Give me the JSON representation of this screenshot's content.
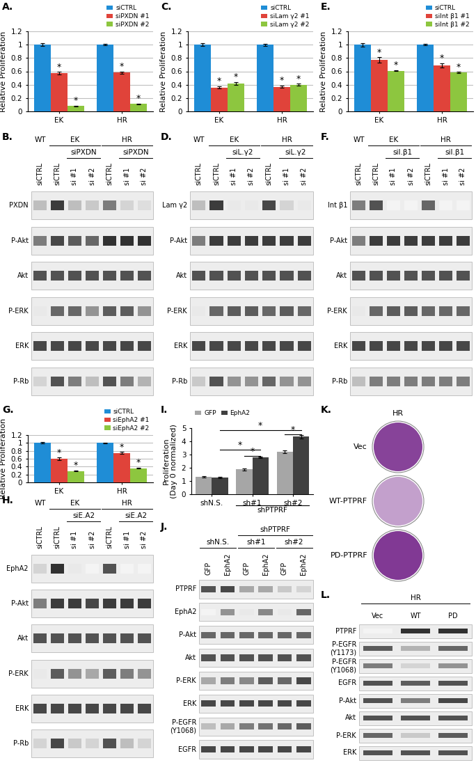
{
  "chart_data": [
    {
      "panel": "A.",
      "type": "bar",
      "y_label": "Relative Proliferation",
      "categories": [
        "EK",
        "HR"
      ],
      "series": [
        {
          "name": "siCTRL",
          "color": "#1F8DD6",
          "values": [
            1,
            1
          ],
          "errors": [
            0.02,
            0.01
          ]
        },
        {
          "name": "siPXDN #1",
          "color": "#E0433A",
          "values": [
            0.57,
            0.58
          ],
          "errors": [
            0.02,
            0.015
          ],
          "significance": [
            "*",
            "*"
          ]
        },
        {
          "name": "siPXDN #2",
          "color": "#8DC63F",
          "values": [
            0.08,
            0.11
          ],
          "errors": [
            0.005,
            0.01
          ],
          "significance": [
            "*",
            "*"
          ]
        }
      ],
      "ylim": [
        0,
        1.2
      ],
      "yticks": [
        0,
        0.2,
        0.4,
        0.6,
        0.8,
        1,
        1.2
      ],
      "grid": true,
      "legend": "upper right"
    },
    {
      "panel": "C.",
      "type": "bar",
      "y_label": "Relative Proliferation",
      "categories": [
        "EK",
        "HR"
      ],
      "series": [
        {
          "name": "siCTRL",
          "color": "#1F8DD6",
          "values": [
            1,
            1
          ],
          "errors": [
            0.02,
            0.015
          ]
        },
        {
          "name": "siLam γ2 #1",
          "color": "#E0433A",
          "values": [
            0.36,
            0.37
          ],
          "errors": [
            0.02,
            0.015
          ],
          "significance": [
            "*",
            "*"
          ]
        },
        {
          "name": "siLam γ2 #2",
          "color": "#8DC63F",
          "values": [
            0.42,
            0.4
          ],
          "errors": [
            0.02,
            0.015
          ],
          "significance": [
            "*",
            "*"
          ]
        }
      ],
      "ylim": [
        0,
        1.2
      ],
      "yticks": [
        0,
        0.2,
        0.4,
        0.6,
        0.8,
        1,
        1.2
      ],
      "grid": true,
      "legend": "upper right"
    },
    {
      "panel": "E.",
      "type": "bar",
      "y_label": "Relative Proliferation",
      "categories": [
        "EK",
        "HR"
      ],
      "series": [
        {
          "name": "siCTRL",
          "color": "#1F8DD6",
          "values": [
            1,
            1
          ],
          "errors": [
            0.025,
            0.01
          ]
        },
        {
          "name": "siInt β1 #1",
          "color": "#E0433A",
          "values": [
            0.77,
            0.69
          ],
          "errors": [
            0.04,
            0.03
          ],
          "significance": [
            "*",
            "*"
          ]
        },
        {
          "name": "siInt β1 #2",
          "color": "#8DC63F",
          "values": [
            0.61,
            0.58
          ],
          "errors": [
            0.005,
            0.01
          ],
          "significance": [
            "*",
            "*"
          ]
        }
      ],
      "ylim": [
        0,
        1.2
      ],
      "yticks": [
        0,
        0.2,
        0.4,
        0.6,
        0.8,
        1,
        1.2
      ],
      "grid": true,
      "legend": "upper right"
    },
    {
      "panel": "G.",
      "type": "bar",
      "y_label": "Relative Proliferation",
      "categories": [
        "EK",
        "HR"
      ],
      "series": [
        {
          "name": "siCTRL",
          "color": "#1F8DD6",
          "values": [
            1,
            1
          ],
          "errors": [
            0.02,
            0.01
          ]
        },
        {
          "name": "siEphA2 #1",
          "color": "#E0433A",
          "values": [
            0.6,
            0.75
          ],
          "errors": [
            0.03,
            0.02
          ],
          "significance": [
            "*",
            "*"
          ]
        },
        {
          "name": "siEphA2 #2",
          "color": "#8DC63F",
          "values": [
            0.29,
            0.36
          ],
          "errors": [
            0.01,
            0.01
          ],
          "significance": [
            "*",
            "*"
          ]
        }
      ],
      "ylim": [
        0,
        1.2
      ],
      "yticks": [
        0,
        0.2,
        0.4,
        0.6,
        0.8,
        1,
        1.2
      ],
      "grid": true,
      "legend": "upper right"
    },
    {
      "panel": "I.",
      "type": "bar",
      "y_label": "Proliferation\n(Day 0 normalized)",
      "categories": [
        "shN.S.",
        "sh#1",
        "sh#2"
      ],
      "group_label": {
        "text": "shPTPRF",
        "categories": [
          "sh#1",
          "sh#2"
        ]
      },
      "series": [
        {
          "name": "GFP",
          "color": "#A6A6A6",
          "values": [
            1.3,
            1.88,
            3.22
          ],
          "errors": [
            0.05,
            0.08,
            0.1
          ]
        },
        {
          "name": "EphA2",
          "color": "#404040",
          "values": [
            1.25,
            2.78,
            4.35
          ],
          "errors": [
            0.04,
            0.06,
            0.12
          ]
        }
      ],
      "brackets": [
        {
          "from": [
            "shN.S.",
            "EphA2"
          ],
          "to": [
            "sh#2",
            "EphA2"
          ],
          "y": 4.85,
          "text": "*"
        },
        {
          "from": [
            "shN.S.",
            "EphA2"
          ],
          "to": [
            "sh#1",
            "EphA2"
          ],
          "y": 3.35,
          "text": "*"
        },
        {
          "from": [
            "sh#1",
            "GFP"
          ],
          "to": [
            "sh#1",
            "EphA2"
          ],
          "y": 2.92,
          "text": "*"
        },
        {
          "from": [
            "sh#2",
            "GFP"
          ],
          "to": [
            "sh#2",
            "EphA2"
          ],
          "y": 4.55,
          "text": "*"
        }
      ],
      "ylim": [
        0,
        5
      ],
      "yticks": [
        0,
        1,
        2,
        3,
        4,
        5
      ],
      "grid": false,
      "legend": "upper left"
    }
  ],
  "blots": [
    {
      "panel": "B.",
      "headers": [
        [
          {
            "text": "WT",
            "lanes": [
              0,
              0
            ]
          },
          {
            "text": "EK",
            "lanes": [
              1,
              3
            ]
          },
          {
            "text": "HR",
            "lanes": [
              4,
              6
            ]
          }
        ],
        [
          {
            "text": "siPXDN",
            "lanes": [
              2,
              3
            ]
          },
          {
            "text": "siPXDN",
            "lanes": [
              5,
              6
            ]
          }
        ]
      ],
      "lanes": [
        "siCTRL",
        "siCTRL",
        "si #1",
        "si #2",
        "siCTRL",
        "si #1",
        "si #2"
      ],
      "rows": [
        {
          "name": "PXDN",
          "bands": [
            0.3,
            0.9,
            0.3,
            0.25,
            0.6,
            0.2,
            0.15
          ]
        },
        {
          "name": "P-Akt",
          "bands": [
            0.6,
            0.85,
            0.75,
            0.7,
            0.95,
            0.95,
            0.95
          ]
        },
        {
          "name": "Akt",
          "bands": [
            0.8,
            0.8,
            0.8,
            0.8,
            0.8,
            0.8,
            0.8
          ]
        },
        {
          "name": "P-ERK",
          "bands": [
            0.1,
            0.7,
            0.7,
            0.5,
            0.75,
            0.75,
            0.5
          ]
        },
        {
          "name": "ERK",
          "bands": [
            0.85,
            0.85,
            0.85,
            0.85,
            0.85,
            0.85,
            0.85
          ]
        },
        {
          "name": "P-Rb",
          "bands": [
            0.2,
            0.8,
            0.6,
            0.3,
            0.8,
            0.6,
            0.35
          ]
        }
      ]
    },
    {
      "panel": "D.",
      "headers": [
        [
          {
            "text": "WT",
            "lanes": [
              0,
              0
            ]
          },
          {
            "text": "EK",
            "lanes": [
              1,
              3
            ]
          },
          {
            "text": "HR",
            "lanes": [
              4,
              6
            ]
          }
        ],
        [
          {
            "text": "siL.γ2",
            "lanes": [
              2,
              3
            ]
          },
          {
            "text": "siL.γ2",
            "lanes": [
              5,
              6
            ]
          }
        ]
      ],
      "lanes": [
        "siCTRL",
        "siCTRL",
        "si #1",
        "si #2",
        "siCTRL",
        "si #1",
        "si #2"
      ],
      "rows": [
        {
          "name": "Lam γ2",
          "bands": [
            0.3,
            0.9,
            0.1,
            0.1,
            0.85,
            0.2,
            0.1
          ]
        },
        {
          "name": "P-Akt",
          "bands": [
            0.6,
            0.9,
            0.9,
            0.9,
            0.9,
            0.9,
            0.9
          ]
        },
        {
          "name": "Akt",
          "bands": [
            0.8,
            0.8,
            0.8,
            0.8,
            0.8,
            0.8,
            0.8
          ]
        },
        {
          "name": "P-ERK",
          "bands": [
            0.1,
            0.7,
            0.75,
            0.75,
            0.7,
            0.75,
            0.7
          ]
        },
        {
          "name": "ERK",
          "bands": [
            0.85,
            0.85,
            0.85,
            0.85,
            0.85,
            0.85,
            0.85
          ]
        },
        {
          "name": "P-Rb",
          "bands": [
            0.25,
            0.8,
            0.5,
            0.5,
            0.7,
            0.5,
            0.5
          ]
        }
      ]
    },
    {
      "panel": "F.",
      "headers": [
        [
          {
            "text": "WT",
            "lanes": [
              0,
              0
            ]
          },
          {
            "text": "EK",
            "lanes": [
              1,
              3
            ]
          },
          {
            "text": "HR",
            "lanes": [
              4,
              6
            ]
          }
        ],
        [
          {
            "text": "siI.β1",
            "lanes": [
              2,
              3
            ]
          },
          {
            "text": "siI.β1",
            "lanes": [
              5,
              6
            ]
          }
        ]
      ],
      "lanes": [
        "siCTRL",
        "siCTRL",
        "si #1",
        "si #2",
        "siCTRL",
        "si #1",
        "si #2"
      ],
      "rows": [
        {
          "name": "Int β1",
          "bands": [
            0.6,
            0.8,
            0.05,
            0.05,
            0.7,
            0.05,
            0.05
          ]
        },
        {
          "name": "P-Akt",
          "bands": [
            0.6,
            0.9,
            0.9,
            0.9,
            0.9,
            0.9,
            0.9
          ]
        },
        {
          "name": "Akt",
          "bands": [
            0.8,
            0.8,
            0.8,
            0.8,
            0.8,
            0.8,
            0.8
          ]
        },
        {
          "name": "P-ERK",
          "bands": [
            0.1,
            0.7,
            0.75,
            0.75,
            0.7,
            0.7,
            0.7
          ]
        },
        {
          "name": "ERK",
          "bands": [
            0.85,
            0.85,
            0.85,
            0.85,
            0.85,
            0.85,
            0.85
          ]
        },
        {
          "name": "P-Rb",
          "bands": [
            0.3,
            0.6,
            0.6,
            0.6,
            0.6,
            0.6,
            0.6
          ]
        }
      ]
    },
    {
      "panel": "H.",
      "headers": [
        [
          {
            "text": "WT",
            "lanes": [
              0,
              0
            ]
          },
          {
            "text": "EK",
            "lanes": [
              1,
              3
            ]
          },
          {
            "text": "HR",
            "lanes": [
              4,
              6
            ]
          }
        ],
        [
          {
            "text": "siE.A2",
            "lanes": [
              2,
              3
            ]
          },
          {
            "text": "siE.A2",
            "lanes": [
              5,
              6
            ]
          }
        ]
      ],
      "lanes": [
        "siCTRL",
        "siCTRL",
        "si #1",
        "si #2",
        "siCTRL",
        "si #1",
        "si #2"
      ],
      "rows": [
        {
          "name": "EphA2",
          "bands": [
            0.2,
            0.95,
            0.1,
            0.05,
            0.8,
            0.05,
            0.05
          ]
        },
        {
          "name": "P-Akt",
          "bands": [
            0.6,
            0.9,
            0.9,
            0.85,
            0.9,
            0.9,
            0.9
          ]
        },
        {
          "name": "Akt",
          "bands": [
            0.8,
            0.8,
            0.8,
            0.8,
            0.8,
            0.8,
            0.8
          ]
        },
        {
          "name": "P-ERK",
          "bands": [
            0.1,
            0.75,
            0.5,
            0.4,
            0.75,
            0.6,
            0.5
          ]
        },
        {
          "name": "ERK",
          "bands": [
            0.85,
            0.85,
            0.85,
            0.85,
            0.85,
            0.85,
            0.85
          ]
        },
        {
          "name": "P-Rb",
          "bands": [
            0.2,
            0.85,
            0.25,
            0.2,
            0.8,
            0.3,
            0.2
          ]
        }
      ]
    },
    {
      "panel": "J.",
      "headers": [
        [
          {
            "text": "shPTPRF",
            "lanes": [
              2,
              5
            ]
          }
        ],
        [
          {
            "text": "shN.S.",
            "lanes": [
              0,
              1
            ]
          },
          {
            "text": "sh#1",
            "lanes": [
              2,
              3
            ]
          },
          {
            "text": "sh#2",
            "lanes": [
              4,
              5
            ]
          }
        ]
      ],
      "lanes": [
        "GFP",
        "EphA2",
        "GFP",
        "EphA2",
        "GFP",
        "EphA2"
      ],
      "rows": [
        {
          "name": "PTPRF",
          "bands": [
            0.8,
            0.85,
            0.4,
            0.4,
            0.25,
            0.2
          ]
        },
        {
          "name": "EphA2",
          "bands": [
            0.05,
            0.5,
            0.1,
            0.55,
            0.1,
            0.7
          ]
        },
        {
          "name": "P-Akt",
          "bands": [
            0.7,
            0.7,
            0.7,
            0.7,
            0.7,
            0.7
          ]
        },
        {
          "name": "Akt",
          "bands": [
            0.8,
            0.8,
            0.8,
            0.8,
            0.8,
            0.8
          ]
        },
        {
          "name": "P-ERK",
          "bands": [
            0.4,
            0.6,
            0.55,
            0.75,
            0.7,
            0.85
          ]
        },
        {
          "name": "ERK",
          "bands": [
            0.85,
            0.85,
            0.85,
            0.85,
            0.85,
            0.85
          ]
        },
        {
          "name": "P-EGFR\n(Y1068)",
          "bands": [
            0.3,
            0.4,
            0.6,
            0.65,
            0.7,
            0.75
          ]
        },
        {
          "name": "EGFR",
          "bands": [
            0.85,
            0.85,
            0.85,
            0.85,
            0.85,
            0.85
          ]
        }
      ]
    },
    {
      "panel": "L.",
      "headers": [
        [
          {
            "text": "HR",
            "lanes": [
              0,
              2
            ]
          }
        ]
      ],
      "lanes": [
        "Vec",
        "WT",
        "PD"
      ],
      "rows": [
        {
          "name": "PTPRF",
          "bands": [
            0.05,
            0.95,
            0.95
          ]
        },
        {
          "name": "P-EGFR\n(Y1173)",
          "bands": [
            0.75,
            0.35,
            0.7
          ]
        },
        {
          "name": "P-EGFR\n(Y1068)",
          "bands": [
            0.6,
            0.2,
            0.5
          ]
        },
        {
          "name": "EGFR",
          "bands": [
            0.8,
            0.75,
            0.8
          ]
        },
        {
          "name": "P-Akt",
          "bands": [
            0.8,
            0.6,
            0.85
          ]
        },
        {
          "name": "Akt",
          "bands": [
            0.8,
            0.8,
            0.8
          ]
        },
        {
          "name": "P-ERK",
          "bands": [
            0.7,
            0.25,
            0.75
          ]
        },
        {
          "name": "ERK",
          "bands": [
            0.8,
            0.8,
            0.8
          ]
        }
      ]
    }
  ],
  "plates": {
    "panel": "K.",
    "title": "HR",
    "color": "#7A2E8E",
    "rows": [
      "Vec",
      "WT-PTPRF",
      "PD-PTPRF"
    ],
    "stain": [
      0.9,
      0.45,
      0.95
    ]
  }
}
